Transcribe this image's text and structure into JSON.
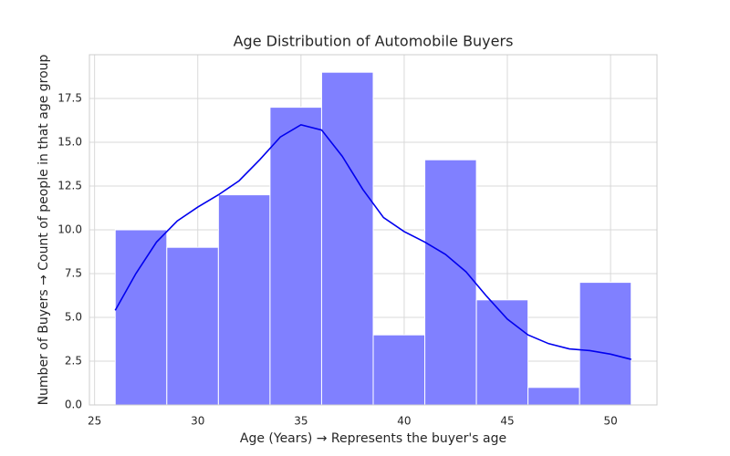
{
  "chart_data": {
    "type": "histogram",
    "title": "Age Distribution of Automobile Buyers",
    "xlabel": "Age (Years) → Represents the buyer's age",
    "ylabel": "Number of Buyers → Count of people in that age group",
    "bins": [
      26,
      28.5,
      31,
      33.5,
      36,
      38.5,
      41,
      43.5,
      46,
      48.5,
      51
    ],
    "values": [
      10,
      9,
      12,
      17,
      19,
      4,
      14,
      6,
      1,
      7
    ],
    "color": "#8080ff",
    "kde": {
      "color": "#0000ee",
      "x": [
        26,
        27,
        28,
        29,
        30,
        31,
        32,
        33,
        34,
        35,
        36,
        37,
        38,
        39,
        40,
        41,
        42,
        43,
        44,
        45,
        46,
        47,
        48,
        49,
        50,
        51
      ],
      "values": [
        5.4,
        7.5,
        9.3,
        10.5,
        11.3,
        12.0,
        12.8,
        14.0,
        15.3,
        16.0,
        15.7,
        14.2,
        12.3,
        10.7,
        9.9,
        9.3,
        8.6,
        7.6,
        6.2,
        4.9,
        4.0,
        3.5,
        3.2,
        3.1,
        2.9,
        2.6
      ]
    },
    "xlim": [
      24.75,
      52.25
    ],
    "xticks": [
      25,
      30,
      35,
      40,
      45,
      50
    ],
    "ylim": [
      0,
      20
    ],
    "yticks": [
      {
        "value": 0,
        "label": "0.0"
      },
      2.5,
      {
        "value": 5,
        "label": "5.0"
      },
      7.5,
      {
        "value": 10,
        "label": "10.0"
      },
      12.5,
      {
        "value": 15,
        "label": "15.0"
      },
      17.5
    ],
    "grid": true
  }
}
